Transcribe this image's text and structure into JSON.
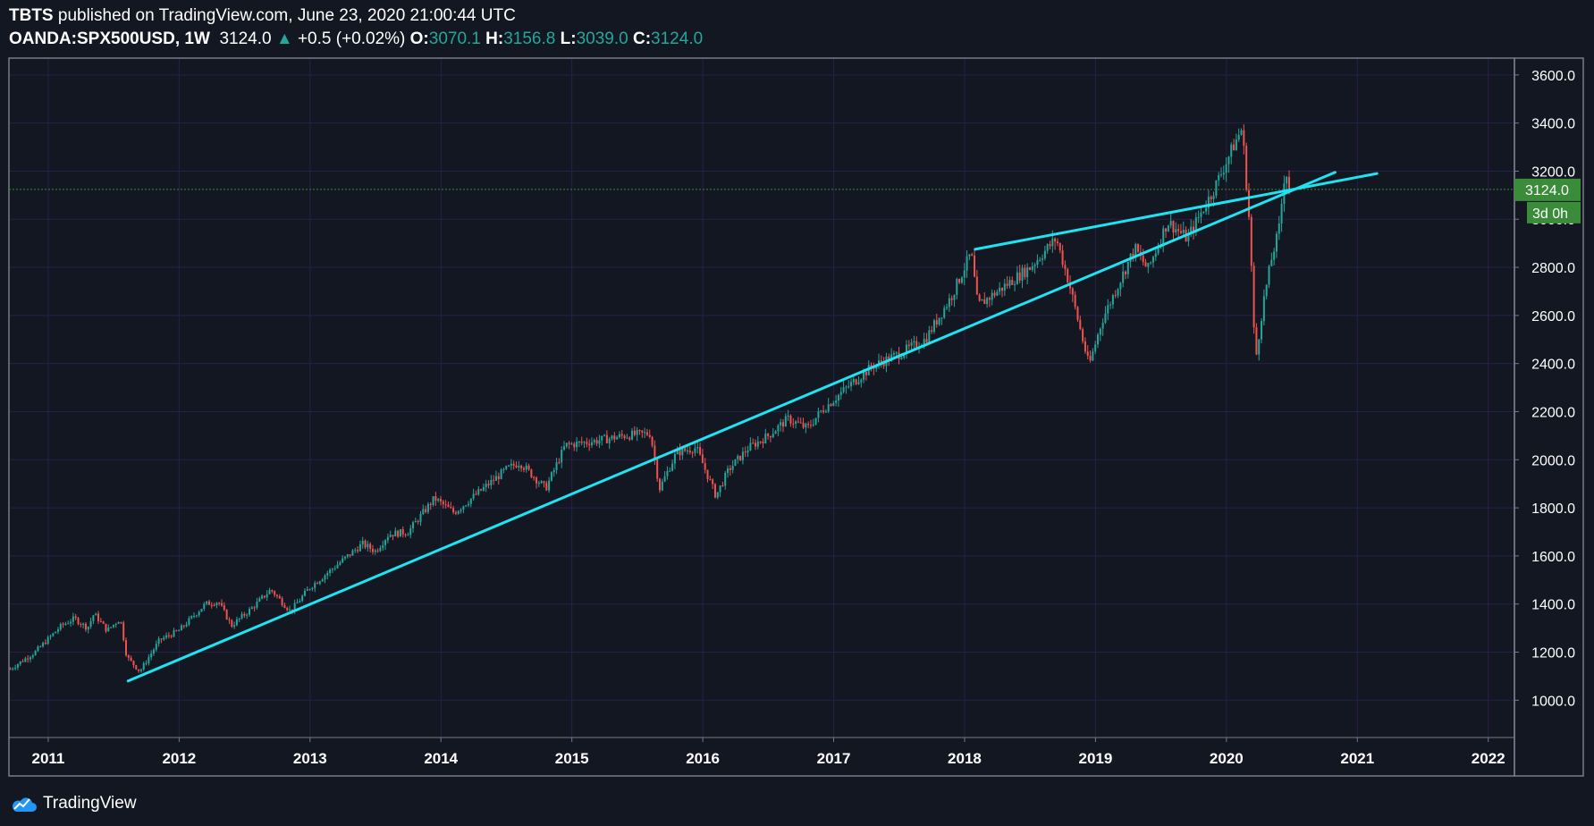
{
  "header": {
    "author": "TBTS",
    "published_text": " published on TradingView.com, June 23, 2020 21:00:44 UTC"
  },
  "ohlc_bar": {
    "symbol": "OANDA:SPX500USD, 1W",
    "last": "3124.0",
    "change": "+0.5 (+0.02%)",
    "open_label": "O:",
    "open": "3070.1",
    "high_label": "H:",
    "high": "3156.8",
    "low_label": "L:",
    "low": "3039.0",
    "close_label": "C:",
    "close": "3124.0"
  },
  "colors": {
    "background": "#131722",
    "grid": "#2a1f4a",
    "trendline": "#20e3f2",
    "up_candle": "#26a69a",
    "down_candle": "#ef5350",
    "price_tag": "#3a8b3a"
  },
  "price_tag": {
    "value": "3124.0",
    "countdown": "3d 0h"
  },
  "brand": {
    "name": "TradingView",
    "icon": "tradingview-cloud-icon"
  },
  "chart_data": {
    "type": "candlestick",
    "symbol": "OANDA:SPX500USD",
    "interval": "1W",
    "grid": true,
    "x_ticks": [
      "2011",
      "2012",
      "2013",
      "2014",
      "2015",
      "2016",
      "2017",
      "2018",
      "2019",
      "2020",
      "2021",
      "2022"
    ],
    "y_ticks": [
      "1000.0",
      "1200.0",
      "1400.0",
      "1600.0",
      "1800.0",
      "2000.0",
      "2200.0",
      "2400.0",
      "2600.0",
      "2800.0",
      "3000.0",
      "3200.0",
      "3400.0",
      "3600.0"
    ],
    "x_range": [
      2010.7,
      2022.2
    ],
    "y_range": [
      845,
      3670
    ],
    "series_points": [
      [
        2010.71,
        1130
      ],
      [
        2010.9,
        1200
      ],
      [
        2011.1,
        1310
      ],
      [
        2011.2,
        1340
      ],
      [
        2011.3,
        1300
      ],
      [
        2011.35,
        1360
      ],
      [
        2011.45,
        1290
      ],
      [
        2011.55,
        1340
      ],
      [
        2011.6,
        1180
      ],
      [
        2011.7,
        1120
      ],
      [
        2011.85,
        1250
      ],
      [
        2012.0,
        1290
      ],
      [
        2012.2,
        1400
      ],
      [
        2012.3,
        1410
      ],
      [
        2012.4,
        1310
      ],
      [
        2012.55,
        1380
      ],
      [
        2012.7,
        1460
      ],
      [
        2012.85,
        1370
      ],
      [
        2013.0,
        1470
      ],
      [
        2013.2,
        1560
      ],
      [
        2013.4,
        1650
      ],
      [
        2013.5,
        1620
      ],
      [
        2013.6,
        1690
      ],
      [
        2013.75,
        1700
      ],
      [
        2013.95,
        1840
      ],
      [
        2014.1,
        1780
      ],
      [
        2014.3,
        1870
      ],
      [
        2014.5,
        1960
      ],
      [
        2014.6,
        1990
      ],
      [
        2014.8,
        1880
      ],
      [
        2014.95,
        2060
      ],
      [
        2015.2,
        2080
      ],
      [
        2015.4,
        2100
      ],
      [
        2015.6,
        2110
      ],
      [
        2015.67,
        1880
      ],
      [
        2015.8,
        2030
      ],
      [
        2015.95,
        2050
      ],
      [
        2016.1,
        1850
      ],
      [
        2016.2,
        1960
      ],
      [
        2016.35,
        2050
      ],
      [
        2016.5,
        2100
      ],
      [
        2016.65,
        2170
      ],
      [
        2016.8,
        2130
      ],
      [
        2016.9,
        2200
      ],
      [
        2017.1,
        2300
      ],
      [
        2017.3,
        2390
      ],
      [
        2017.5,
        2440
      ],
      [
        2017.7,
        2500
      ],
      [
        2017.9,
        2680
      ],
      [
        2018.05,
        2860
      ],
      [
        2018.1,
        2640
      ],
      [
        2018.3,
        2720
      ],
      [
        2018.5,
        2800
      ],
      [
        2018.7,
        2920
      ],
      [
        2018.8,
        2730
      ],
      [
        2018.95,
        2390
      ],
      [
        2019.05,
        2580
      ],
      [
        2019.3,
        2880
      ],
      [
        2019.4,
        2790
      ],
      [
        2019.55,
        2990
      ],
      [
        2019.7,
        2920
      ],
      [
        2019.9,
        3120
      ],
      [
        2020.05,
        3300
      ],
      [
        2020.12,
        3380
      ],
      [
        2020.18,
        2950
      ],
      [
        2020.22,
        2400
      ],
      [
        2020.28,
        2650
      ],
      [
        2020.35,
        2850
      ],
      [
        2020.4,
        2950
      ],
      [
        2020.45,
        3220
      ],
      [
        2020.48,
        3124
      ]
    ],
    "trendlines": [
      {
        "name": "lower-trendline",
        "from": [
          2011.61,
          1080
        ],
        "to": [
          2020.83,
          3195
        ]
      },
      {
        "name": "upper-trendline",
        "from": [
          2018.08,
          2875
        ],
        "to": [
          2021.15,
          3190
        ]
      }
    ],
    "last_price": 3124.0
  }
}
